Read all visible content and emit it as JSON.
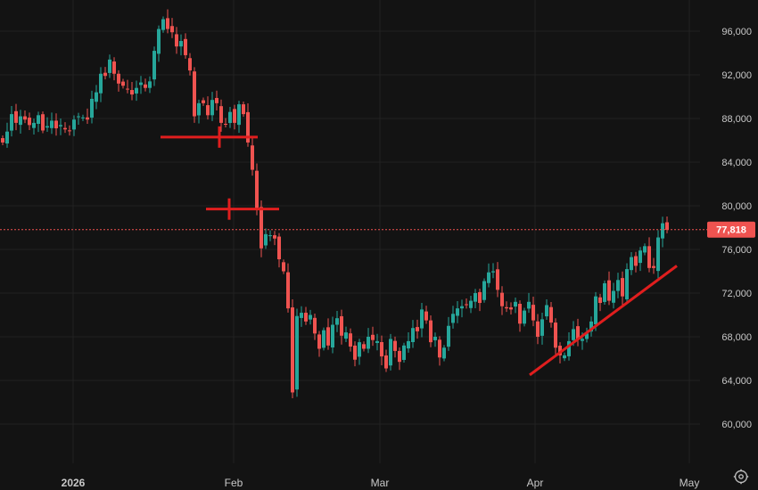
{
  "chart_data": {
    "type": "candlestick",
    "title": "",
    "xlabel": "",
    "ylabel": "",
    "ylim": [
      58000,
      98500
    ],
    "y_ticks": [
      {
        "value": 60000,
        "label": "60,000"
      },
      {
        "value": 64000,
        "label": "64,000"
      },
      {
        "value": 68000,
        "label": "68,000"
      },
      {
        "value": 72000,
        "label": "72,000"
      },
      {
        "value": 76000,
        "label": "76,000"
      },
      {
        "value": 80000,
        "label": "80,000"
      },
      {
        "value": 84000,
        "label": "84,000"
      },
      {
        "value": 88000,
        "label": "88,000"
      },
      {
        "value": 92000,
        "label": "92,000"
      },
      {
        "value": 96000,
        "label": "96,000"
      }
    ],
    "x_ticks": [
      {
        "label": "2026",
        "bold": true
      },
      {
        "label": "Feb",
        "bold": false
      },
      {
        "label": "Mar",
        "bold": false
      },
      {
        "label": "Apr",
        "bold": false
      },
      {
        "label": "May",
        "bold": false
      }
    ],
    "last_price": {
      "value": 77818,
      "label": "77,818"
    },
    "grid": true,
    "colors": {
      "up": "#26a69a",
      "down": "#ef5350",
      "annotation": "#e01e1e",
      "background": "#131313",
      "grid": "#222222",
      "price_label_bg": "#ef5350"
    },
    "annotations": [
      {
        "type": "horizontal-segment",
        "value": 86300
      },
      {
        "type": "horizontal-segment",
        "value": 79700
      },
      {
        "type": "trendline",
        "start": 64500,
        "end": 74500
      }
    ],
    "closes": [
      85800,
      86800,
      88400,
      87600,
      88200,
      87900,
      87400,
      87600,
      88300,
      86900,
      87300,
      87800,
      87100,
      87400,
      87000,
      86900,
      87900,
      88200,
      88100,
      87900,
      89800,
      90400,
      92100,
      91900,
      93400,
      92100,
      91200,
      91000,
      90700,
      90200,
      90800,
      91300,
      90800,
      91400,
      94200,
      96200,
      97100,
      96200,
      95900,
      94600,
      95100,
      93800,
      92400,
      88200,
      89400,
      89400,
      88300,
      89700,
      89400,
      87600,
      87500,
      88600,
      87600,
      89300,
      88400,
      85800,
      83300,
      79800,
      76100,
      77400,
      77300,
      77000,
      75100,
      74000,
      70600,
      62900,
      69900,
      70200,
      69400,
      70000,
      68300,
      66900,
      68600,
      67200,
      69100,
      69700,
      68100,
      68400,
      67100,
      65900,
      67500,
      66900,
      68000,
      67700,
      67600,
      66200,
      65100,
      67800,
      66700,
      65700,
      67200,
      67600,
      68800,
      68500,
      70500,
      69500,
      67500,
      68000,
      66100,
      67000,
      69000,
      70100,
      70600,
      70800,
      70900,
      71300,
      72000,
      71100,
      73100,
      73900,
      74000,
      72300,
      70800,
      70600,
      70500,
      71200,
      69200,
      70400,
      71200,
      69500,
      68000,
      69600,
      70900,
      69300,
      67000,
      66300,
      66300,
      67600,
      68700,
      67800,
      67800,
      68300,
      69400,
      71700,
      71100,
      72900,
      71300,
      72200,
      73200,
      71700,
      74200,
      75300,
      74500,
      75900,
      76300,
      74300,
      74300,
      77100,
      78400,
      77800
    ]
  }
}
